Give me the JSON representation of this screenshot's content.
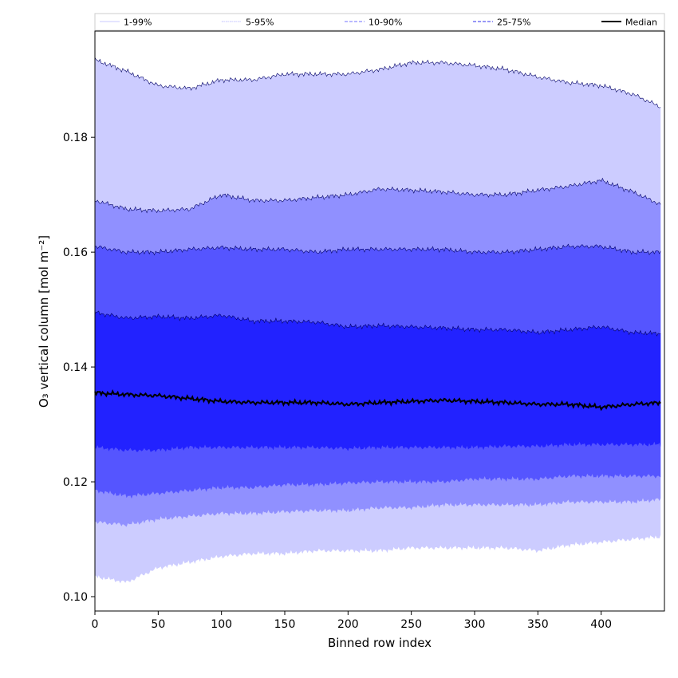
{
  "chart_data": {
    "type": "area",
    "title": "",
    "xlabel": "Binned row index",
    "ylabel": "O₃ vertical column [mol m⁻²]",
    "xlim": [
      0,
      450
    ],
    "ylim": [
      0.0975,
      0.1985
    ],
    "x_ticks": [
      0,
      50,
      100,
      150,
      200,
      250,
      300,
      350,
      400
    ],
    "y_ticks": [
      0.1,
      0.12,
      0.14,
      0.16,
      0.18
    ],
    "grid": false,
    "legend_placement": "top",
    "x": [
      0,
      25,
      50,
      75,
      100,
      125,
      150,
      175,
      200,
      225,
      250,
      275,
      300,
      325,
      350,
      375,
      400,
      425,
      450
    ],
    "bands": [
      {
        "name": "1-99%",
        "color": "#ccccff",
        "lower": [
          0.1035,
          0.1025,
          0.105,
          0.106,
          0.107,
          0.1075,
          0.1075,
          0.108,
          0.108,
          0.108,
          0.1085,
          0.1085,
          0.1085,
          0.1085,
          0.108,
          0.109,
          0.1095,
          0.11,
          0.1105
        ],
        "upper": [
          0.1935,
          0.1915,
          0.189,
          0.1885,
          0.19,
          0.19,
          0.191,
          0.191,
          0.191,
          0.1918,
          0.193,
          0.193,
          0.1925,
          0.1918,
          0.1905,
          0.1895,
          0.189,
          0.1875,
          0.185
        ]
      },
      {
        "name": "5-95%",
        "color": "#9090ff",
        "lower": [
          0.113,
          0.1125,
          0.1135,
          0.114,
          0.1145,
          0.1145,
          0.1148,
          0.115,
          0.115,
          0.1155,
          0.1155,
          0.116,
          0.116,
          0.116,
          0.116,
          0.1165,
          0.1165,
          0.1165,
          0.117
        ],
        "upper": [
          0.169,
          0.1675,
          0.1672,
          0.1675,
          0.17,
          0.169,
          0.169,
          0.1695,
          0.17,
          0.171,
          0.1708,
          0.1705,
          0.17,
          0.17,
          0.1708,
          0.1715,
          0.1725,
          0.1705,
          0.168
        ]
      },
      {
        "name": "10-90%",
        "color": "#5555ff",
        "lower": [
          0.1185,
          0.1175,
          0.118,
          0.1185,
          0.119,
          0.119,
          0.1195,
          0.1195,
          0.1198,
          0.12,
          0.12,
          0.12,
          0.1205,
          0.1205,
          0.1205,
          0.121,
          0.121,
          0.121,
          0.121
        ],
        "upper": [
          0.161,
          0.16,
          0.16,
          0.1605,
          0.1608,
          0.1605,
          0.1605,
          0.16,
          0.1605,
          0.1605,
          0.1605,
          0.1605,
          0.16,
          0.16,
          0.1605,
          0.161,
          0.161,
          0.16,
          0.16
        ]
      },
      {
        "name": "25-75%",
        "color": "#2222ff",
        "lower": [
          0.126,
          0.1255,
          0.1255,
          0.126,
          0.126,
          0.126,
          0.126,
          0.126,
          0.1258,
          0.126,
          0.126,
          0.126,
          0.126,
          0.1262,
          0.1262,
          0.1265,
          0.1265,
          0.1265,
          0.1265
        ],
        "upper": [
          0.1495,
          0.1485,
          0.1488,
          0.1485,
          0.149,
          0.148,
          0.148,
          0.1478,
          0.147,
          0.1472,
          0.147,
          0.1468,
          0.1465,
          0.1465,
          0.146,
          0.1465,
          0.147,
          0.146,
          0.1458
        ]
      }
    ],
    "median": {
      "name": "Median",
      "color": "#000000",
      "values": [
        0.1355,
        0.1352,
        0.135,
        0.1345,
        0.134,
        0.1338,
        0.1338,
        0.1338,
        0.1335,
        0.1338,
        0.134,
        0.1342,
        0.134,
        0.1338,
        0.1335,
        0.1335,
        0.133,
        0.1335,
        0.1338
      ]
    },
    "legend": [
      {
        "label": "1-99%",
        "color": "#c8c8ff",
        "style": "solid"
      },
      {
        "label": "5-95%",
        "color": "#9898ff",
        "style": "dotted"
      },
      {
        "label": "10-90%",
        "color": "#7070ff",
        "style": "dashed"
      },
      {
        "label": "25-75%",
        "color": "#3030ee",
        "style": "dashed"
      },
      {
        "label": "Median",
        "color": "#000000",
        "style": "solid"
      }
    ]
  }
}
